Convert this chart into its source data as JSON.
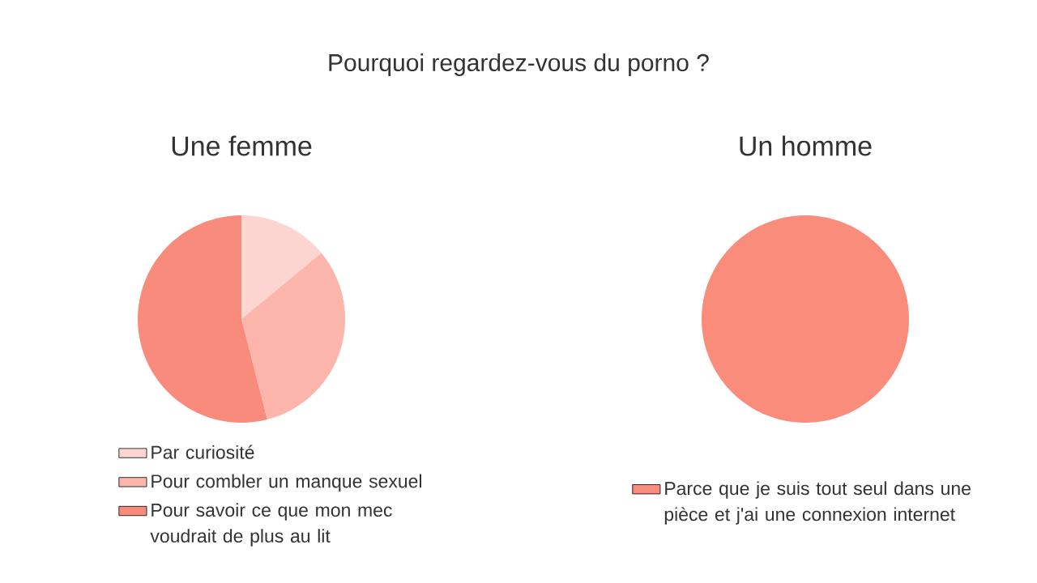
{
  "chart_data": [
    {
      "type": "pie",
      "title": "Pourquoi regardez-vous du porno ?",
      "subtitle": "Une femme",
      "categories": [
        "Par curiosité",
        "Pour combler un manque sexuel",
        "Pour savoir ce que mon mec voudrait de plus au lit"
      ],
      "values": [
        14,
        32,
        54
      ],
      "colors": [
        "#fdd5d0",
        "#fbb5aa",
        "#f98b7c"
      ],
      "legend": "bottom"
    },
    {
      "type": "pie",
      "subtitle": "Un homme",
      "categories": [
        "Parce que je suis tout seul dans une pièce et j'ai une connexion internet"
      ],
      "values": [
        100
      ],
      "colors": [
        "#fa8c7c"
      ],
      "legend": "bottom"
    }
  ]
}
